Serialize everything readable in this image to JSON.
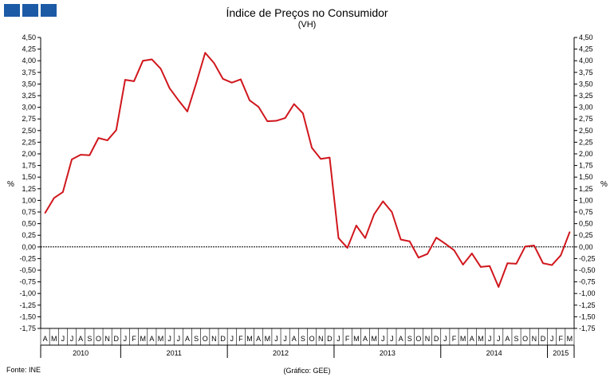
{
  "header": {
    "logo_color": "#1c5aa6"
  },
  "footer": {
    "source": "Fonte: INE",
    "credit": "(Gráfico: GEE)"
  },
  "chart_data": {
    "type": "line",
    "title": "Índice de Preços no Consumidor",
    "subtitle": "(VH)",
    "ylabel_left": "%",
    "ylabel_right": "%",
    "ylim": [
      -1.75,
      4.5
    ],
    "yticks": [
      "4,50",
      "4,25",
      "4,00",
      "3,75",
      "3,50",
      "3,25",
      "3,00",
      "2,75",
      "2,50",
      "2,25",
      "2,00",
      "1,75",
      "1,50",
      "1,25",
      "1,00",
      "0,75",
      "0,50",
      "0,25",
      "0,00",
      "-0,25",
      "-0,50",
      "-0,75",
      "-1,00",
      "-1,25",
      "-1,50",
      "-1,75"
    ],
    "line_color": "#d0171d",
    "grid": false,
    "month_labels": [
      "A",
      "M",
      "J",
      "J",
      "A",
      "S",
      "O",
      "N",
      "D",
      "J",
      "F",
      "M",
      "A",
      "M",
      "J",
      "J",
      "A",
      "S",
      "O",
      "N",
      "D",
      "J",
      "F",
      "M",
      "A",
      "M",
      "J",
      "J",
      "A",
      "S",
      "O",
      "N",
      "D",
      "J",
      "F",
      "M",
      "A",
      "M",
      "J",
      "J",
      "A",
      "S",
      "O",
      "N",
      "D",
      "J",
      "F",
      "M",
      "A",
      "M",
      "J",
      "J",
      "A",
      "S",
      "O",
      "N",
      "D",
      "J",
      "F",
      "M"
    ],
    "years": [
      {
        "label": "2010",
        "months": 9
      },
      {
        "label": "2011",
        "months": 12
      },
      {
        "label": "2012",
        "months": 12
      },
      {
        "label": "2013",
        "months": 12
      },
      {
        "label": "2014",
        "months": 12
      },
      {
        "label": "2015",
        "months": 3
      }
    ],
    "series": [
      {
        "values": [
          0.73,
          1.05,
          1.18,
          1.88,
          1.98,
          1.97,
          2.34,
          2.29,
          2.51,
          3.59,
          3.56,
          4.0,
          4.03,
          3.83,
          3.41,
          3.15,
          2.91,
          3.52,
          4.17,
          3.95,
          3.61,
          3.53,
          3.6,
          3.15,
          3.01,
          2.7,
          2.71,
          2.77,
          3.07,
          2.87,
          2.13,
          1.89,
          1.92,
          0.19,
          -0.02,
          0.46,
          0.19,
          0.7,
          0.98,
          0.75,
          0.16,
          0.12,
          -0.23,
          -0.15,
          0.2,
          0.07,
          -0.07,
          -0.38,
          -0.14,
          -0.43,
          -0.41,
          -0.86,
          -0.35,
          -0.36,
          0.01,
          0.03,
          -0.35,
          -0.39,
          -0.18,
          0.32
        ]
      }
    ]
  }
}
